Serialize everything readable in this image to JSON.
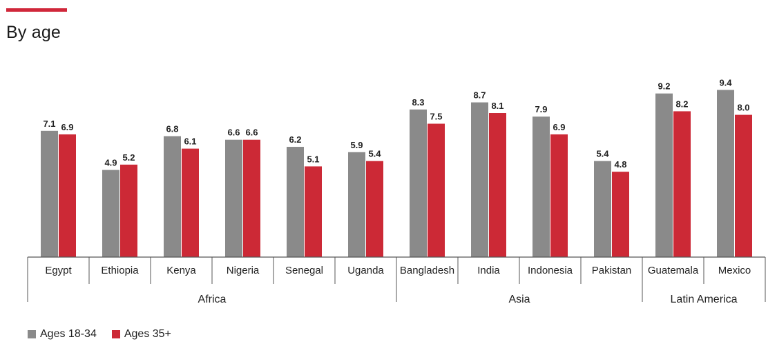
{
  "title": "By age",
  "colors": {
    "accent": "#d0273a",
    "series_a": "#8a8a8a",
    "series_b": "#cc2936",
    "axis": "#555555"
  },
  "chart_data": {
    "type": "bar",
    "title": "By age",
    "categories": [
      "Egypt",
      "Ethiopia",
      "Kenya",
      "Nigeria",
      "Senegal",
      "Uganda",
      "Bangladesh",
      "India",
      "Indonesia",
      "Pakistan",
      "Guatemala",
      "Mexico"
    ],
    "groups": [
      {
        "name": "Africa",
        "categories": [
          "Egypt",
          "Ethiopia",
          "Kenya",
          "Nigeria",
          "Senegal",
          "Uganda"
        ]
      },
      {
        "name": "Asia",
        "categories": [
          "Bangladesh",
          "India",
          "Indonesia",
          "Pakistan"
        ]
      },
      {
        "name": "Latin America",
        "categories": [
          "Guatemala",
          "Mexico"
        ]
      }
    ],
    "series": [
      {
        "name": "Ages 18-34",
        "values": [
          7.1,
          4.9,
          6.8,
          6.6,
          6.2,
          5.9,
          8.3,
          8.7,
          7.9,
          5.4,
          9.2,
          9.4
        ],
        "labels": [
          "7.1",
          "4.9",
          "6.8",
          "6.6",
          "6.2",
          "5.9",
          "8.3",
          "8.7",
          "7.9",
          "5.4",
          "9.2",
          "9.4"
        ]
      },
      {
        "name": "Ages 35+",
        "values": [
          6.9,
          5.2,
          6.1,
          6.6,
          5.1,
          5.4,
          7.5,
          8.1,
          6.9,
          4.8,
          8.2,
          8.0
        ],
        "labels": [
          "6.9",
          "5.2",
          "6.1",
          "6.6",
          "5.1",
          "5.4",
          "7.5",
          "8.1",
          "6.9",
          "4.8",
          "8.2",
          "8.0"
        ]
      }
    ],
    "ylim": [
      0,
      10
    ],
    "grid": false,
    "legend_position": "bottom-left"
  }
}
